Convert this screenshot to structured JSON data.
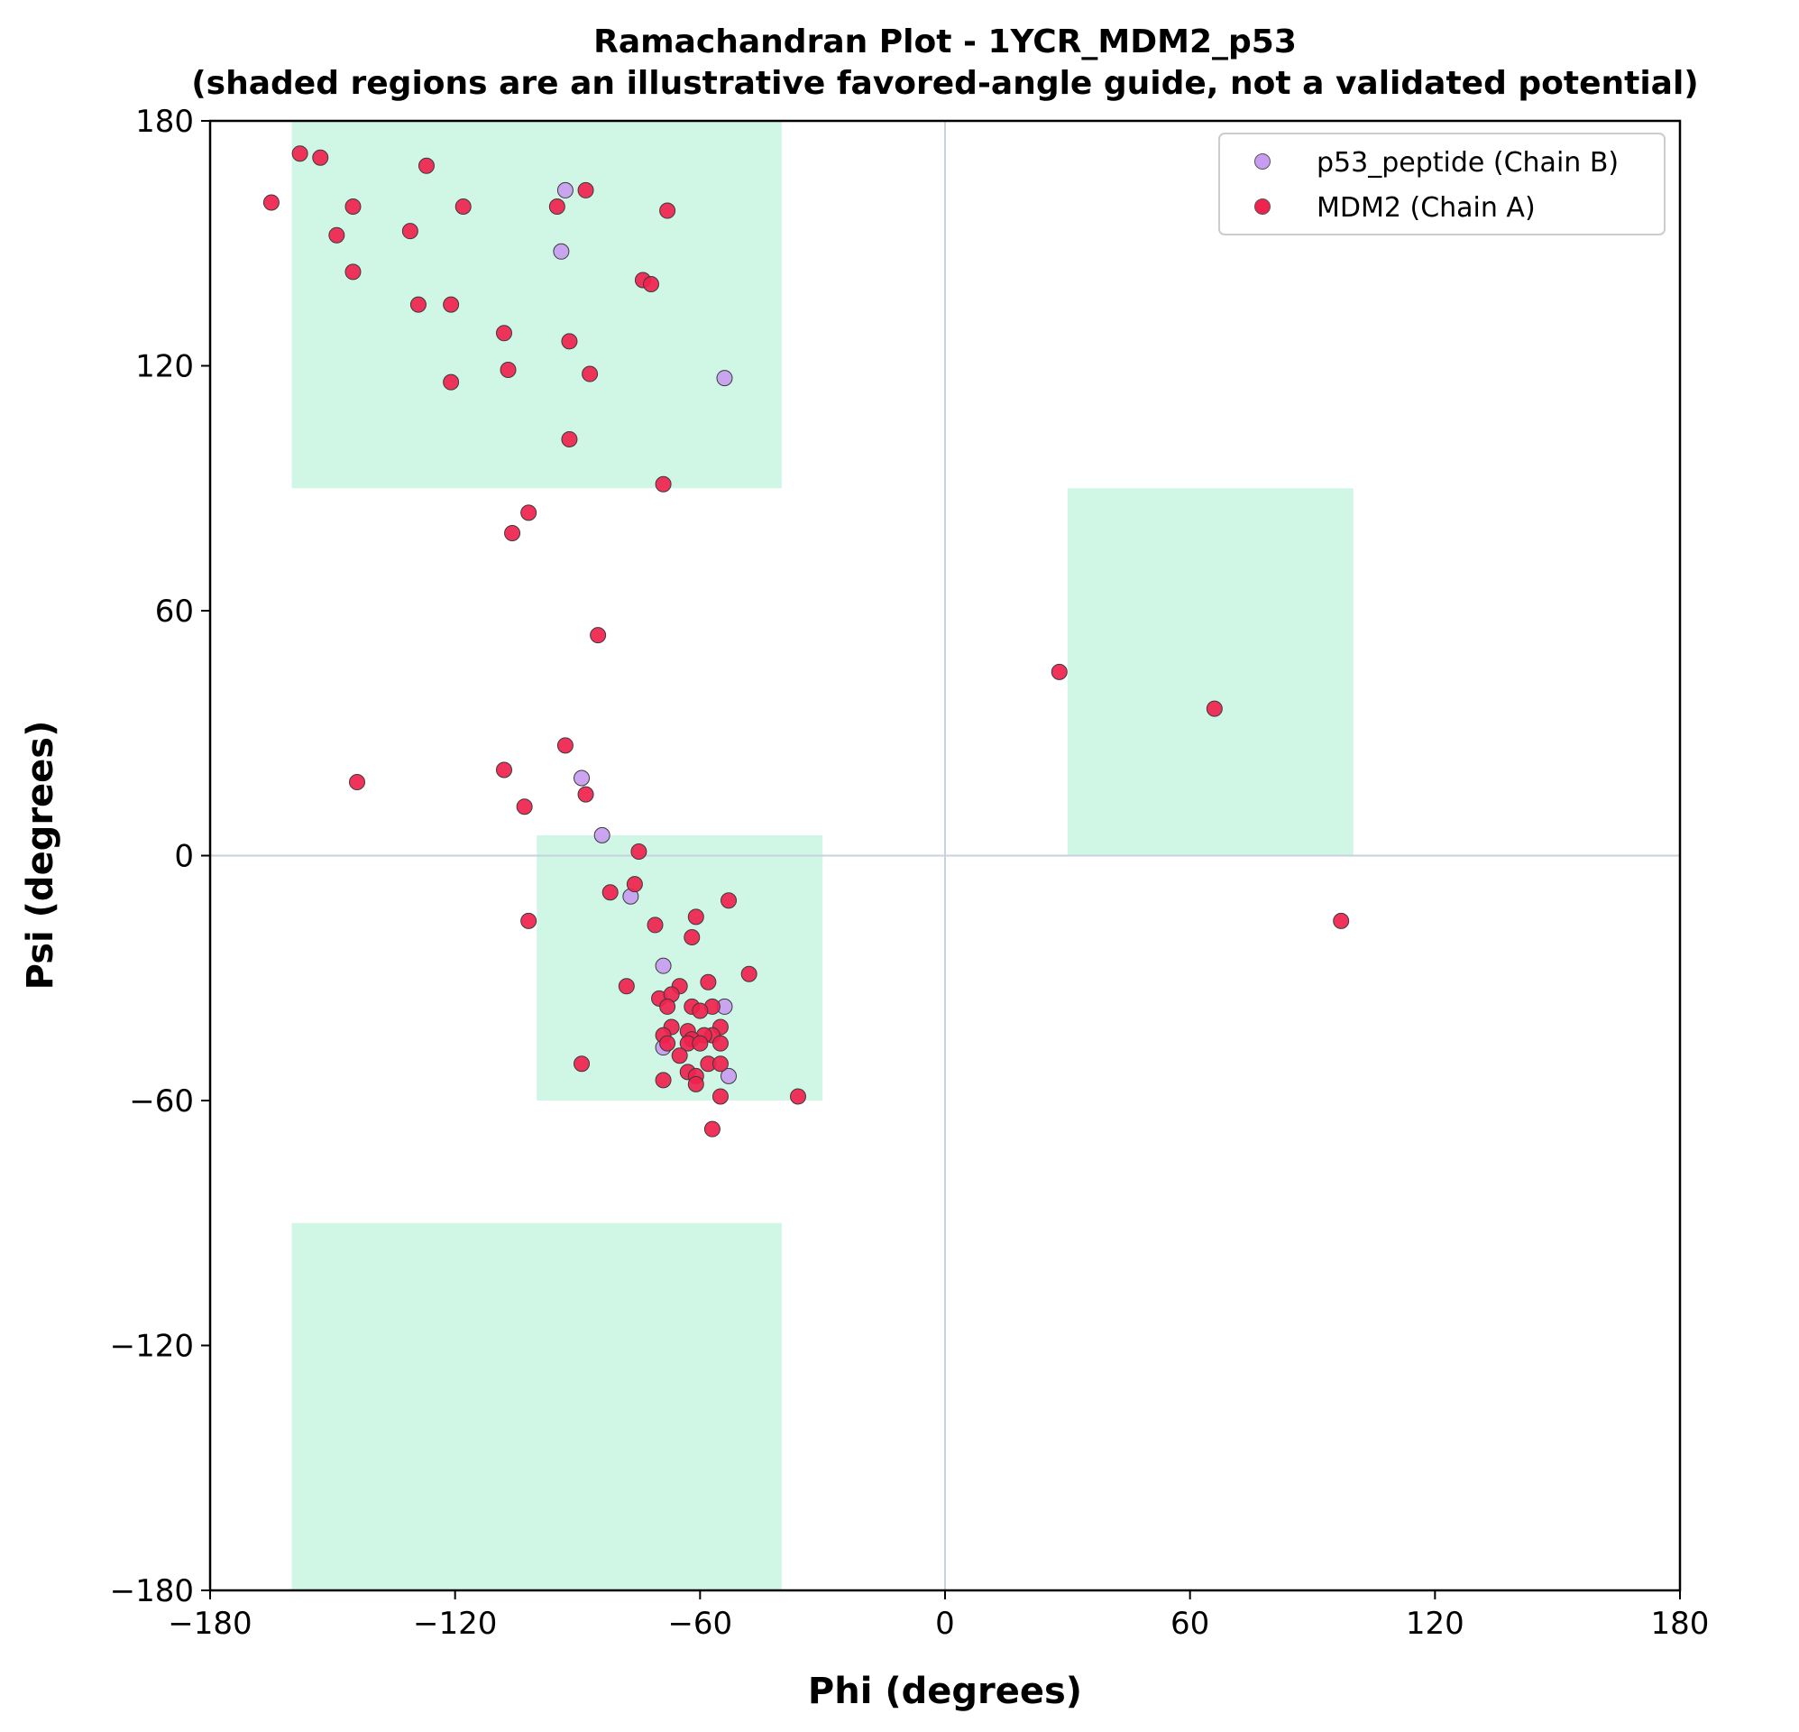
{
  "chart_data": {
    "type": "scatter",
    "title": "Ramachandran Plot - 1YCR_MDM2_p53",
    "subtitle": "(shaded regions are an illustrative favored-angle guide, not a validated potential)",
    "xlabel": "Phi (degrees)",
    "ylabel": "Psi (degrees)",
    "xlim": [
      -180,
      180
    ],
    "ylim": [
      -180,
      180
    ],
    "xticks": [
      -180,
      -120,
      -60,
      0,
      60,
      120,
      180
    ],
    "yticks": [
      -180,
      -120,
      -60,
      0,
      60,
      120,
      180
    ],
    "xtick_labels": [
      "−180",
      "−120",
      "−60",
      "0",
      "60",
      "120",
      "180"
    ],
    "ytick_labels": [
      "−180",
      "−120",
      "−60",
      "0",
      "60",
      "120",
      "180"
    ],
    "grid": false,
    "reference_lines": {
      "x": 0,
      "y": 0,
      "color": "#c8d2dc"
    },
    "legend_position": "top-right",
    "shaded_regions": [
      {
        "x": [
          -160,
          -40
        ],
        "y": [
          90,
          180
        ]
      },
      {
        "x": [
          -160,
          -40
        ],
        "y": [
          -180,
          -90
        ]
      },
      {
        "x": [
          -100,
          -30
        ],
        "y": [
          -60,
          5
        ]
      },
      {
        "x": [
          30,
          100
        ],
        "y": [
          0,
          90
        ]
      }
    ],
    "shade_color": "#d0f7e6",
    "series": [
      {
        "name": "p53_peptide (Chain B)",
        "color": "#c89cf0",
        "points": [
          [
            -93,
            163
          ],
          [
            -94,
            148
          ],
          [
            -54,
            117
          ],
          [
            -89,
            19
          ],
          [
            -84,
            5
          ],
          [
            -77,
            -10
          ],
          [
            -69,
            -27
          ],
          [
            -54,
            -37
          ],
          [
            -69,
            -47
          ],
          [
            -53,
            -54
          ]
        ]
      },
      {
        "name": "MDM2 (Chain A)",
        "color": "#f0224e",
        "points": [
          [
            -158,
            172
          ],
          [
            -153,
            171
          ],
          [
            -165,
            160
          ],
          [
            -127,
            169
          ],
          [
            -145,
            159
          ],
          [
            -149,
            152
          ],
          [
            -145,
            143
          ],
          [
            -131,
            153
          ],
          [
            -118,
            159
          ],
          [
            -129,
            135
          ],
          [
            -121,
            135
          ],
          [
            -95,
            159
          ],
          [
            -88,
            163
          ],
          [
            -68,
            158
          ],
          [
            -74,
            141
          ],
          [
            -72,
            140
          ],
          [
            -108,
            128
          ],
          [
            -92,
            126
          ],
          [
            -107,
            119
          ],
          [
            -87,
            118
          ],
          [
            -121,
            116
          ],
          [
            -92,
            102
          ],
          [
            -69,
            91
          ],
          [
            -102,
            84
          ],
          [
            -106,
            79
          ],
          [
            -85,
            54
          ],
          [
            28,
            45
          ],
          [
            66,
            36
          ],
          [
            -93,
            27
          ],
          [
            -108,
            21
          ],
          [
            -144,
            18
          ],
          [
            -88,
            15
          ],
          [
            -103,
            12
          ],
          [
            -75,
            1
          ],
          [
            -76,
            -7
          ],
          [
            -82,
            -9
          ],
          [
            -53,
            -11
          ],
          [
            -61,
            -15
          ],
          [
            -102,
            -16
          ],
          [
            -71,
            -17
          ],
          [
            -62,
            -20
          ],
          [
            97,
            -16
          ],
          [
            -48,
            -29
          ],
          [
            -78,
            -32
          ],
          [
            -65,
            -32
          ],
          [
            -58,
            -31
          ],
          [
            -70,
            -35
          ],
          [
            -67,
            -34
          ],
          [
            -68,
            -37
          ],
          [
            -62,
            -37
          ],
          [
            -57,
            -37
          ],
          [
            -60,
            -38
          ],
          [
            -55,
            -42
          ],
          [
            -67,
            -42
          ],
          [
            -63,
            -43
          ],
          [
            -57,
            -44
          ],
          [
            -59,
            -44
          ],
          [
            -69,
            -44
          ],
          [
            -62,
            -45
          ],
          [
            -55,
            -46
          ],
          [
            -63,
            -46
          ],
          [
            -60,
            -46
          ],
          [
            -68,
            -46
          ],
          [
            -65,
            -49
          ],
          [
            -58,
            -51
          ],
          [
            -55,
            -51
          ],
          [
            -89,
            -51
          ],
          [
            -63,
            -53
          ],
          [
            -61,
            -54
          ],
          [
            -69,
            -55
          ],
          [
            -61,
            -56
          ],
          [
            -55,
            -59
          ],
          [
            -36,
            -59
          ],
          [
            -57,
            -67
          ]
        ]
      }
    ]
  }
}
